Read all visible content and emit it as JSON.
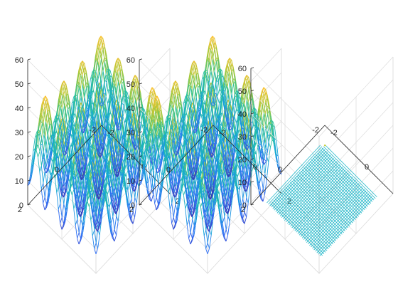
{
  "chart_data": [
    {
      "type": "surface",
      "surface": "rastrigin",
      "x_range": [
        -2,
        2
      ],
      "y_range": [
        -2,
        2
      ],
      "zlim": [
        0,
        60
      ],
      "z_ticks": [
        "0",
        "10",
        "20",
        "30",
        "40",
        "50",
        "60"
      ],
      "x_ticks": [
        "-2",
        "0",
        "2"
      ],
      "y_ticks": [
        "-2",
        "0",
        "2"
      ],
      "colormap": [
        "#3e26a8",
        "#2f6ff6",
        "#14a7d8",
        "#2cc29b",
        "#9fc93a",
        "#f8c12e",
        "#f9fb0e"
      ],
      "style": "mesh",
      "grid": true
    },
    {
      "type": "surface",
      "surface": "rastrigin",
      "x_range": [
        -2,
        2
      ],
      "y_range": [
        -2,
        2
      ],
      "zlim": [
        0,
        60
      ],
      "z_ticks": [
        "0",
        "10",
        "20",
        "30",
        "40",
        "50",
        "60"
      ],
      "x_ticks": [
        "-2",
        "0",
        "2"
      ],
      "y_ticks": [
        "-2",
        "0",
        "2"
      ],
      "colormap": [
        "#3e26a8",
        "#2f6ff6",
        "#14a7d8",
        "#2cc29b",
        "#9fc93a",
        "#f8c12e",
        "#f9fb0e"
      ],
      "style": "mesh",
      "grid": true
    },
    {
      "type": "surface",
      "surface": "flat-patch",
      "x_range": [
        -2,
        2
      ],
      "y_range": [
        -2,
        2
      ],
      "zlim": [
        0,
        60
      ],
      "z_ticks": [
        "0",
        "10",
        "20",
        "30",
        "40",
        "50",
        "60"
      ],
      "x_ticks": [
        "-2",
        "0",
        "2"
      ],
      "y_ticks": [
        "-2",
        "0",
        "2"
      ],
      "color": "#22b7c9",
      "style": "mesh",
      "grid": true
    }
  ]
}
